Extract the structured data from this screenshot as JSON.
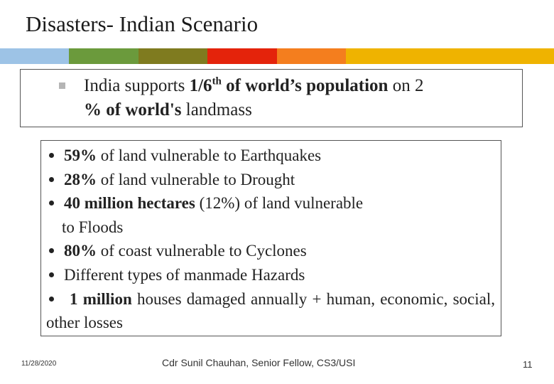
{
  "title": "Disasters- Indian Scenario",
  "highlight": {
    "runs": [
      "India supports ",
      "1/6",
      "th",
      " of world’s population",
      " on 2",
      "% of world's",
      " landmass"
    ]
  },
  "points": [
    {
      "runs": [
        "59%",
        " of land vulnerable to Earthquakes"
      ]
    },
    {
      "runs": [
        "28%",
        " of land vulnerable to Drought"
      ]
    },
    {
      "runs": [
        "40 million hectares",
        " (12%) of land vulnerable",
        "to Floods"
      ]
    },
    {
      "runs": [
        "80%",
        " of coast vulnerable to Cyclones"
      ]
    },
    {
      "runs": [
        "Different types of manmade Hazards"
      ]
    },
    {
      "runs": [
        "1 million",
        " houses damaged annually + human, economic, social, other losses"
      ]
    }
  ],
  "footer": {
    "date": "11/28/2020",
    "author": "Cdr Sunil Chauhan, Senior Fellow, CS3/USI",
    "page": "11"
  }
}
